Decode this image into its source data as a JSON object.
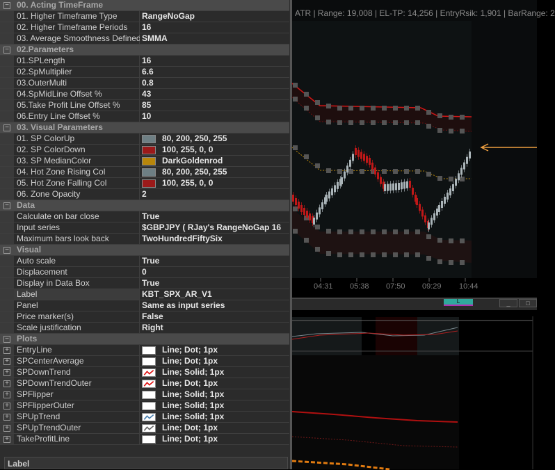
{
  "grid": [
    {
      "cat": "00. Acting TimeFrame"
    },
    {
      "label": "01. Higher Timeframe Type",
      "value": "RangeNoGap"
    },
    {
      "label": "02. Higher Timeframe Periods",
      "value": "16"
    },
    {
      "label": "03. Average Smoothness Defined",
      "value": "SMMA"
    },
    {
      "cat": "02.Parameters"
    },
    {
      "label": "01.SPLength",
      "value": "16"
    },
    {
      "label": "02.SpMultiplier",
      "value": "6.6"
    },
    {
      "label": "03.OuterMulti",
      "value": "0.8"
    },
    {
      "label": "04.SpMidLine Offset %",
      "value": "43"
    },
    {
      "label": "05.Take Profit Line Offset %",
      "value": "85"
    },
    {
      "label": "06.Entry Line  Offset %",
      "value": "10"
    },
    {
      "cat": "03. Visual Parameters"
    },
    {
      "label": "01. SP ColorUp",
      "value": "80, 200, 250, 255",
      "swatch": "#6e7f84"
    },
    {
      "label": "02. SP ColorDown",
      "value": "100, 255, 0, 0",
      "swatch": "#9b1a1a"
    },
    {
      "label": "03. SP MedianColor",
      "value": "DarkGoldenrod",
      "swatch": "#b8860b"
    },
    {
      "label": "04. Hot Zone Rising Col",
      "value": "80, 200, 250, 255",
      "swatch": "#6e7f84"
    },
    {
      "label": "05. Hot Zone Falling  Col",
      "value": "100, 255, 0, 0",
      "swatch": "#9b1a1a"
    },
    {
      "label": "06. Zone Opacity",
      "value": "2"
    },
    {
      "cat": "Data"
    },
    {
      "label": "Calculate on bar close",
      "value": "True"
    },
    {
      "label": "Input series",
      "value": "$GBPJPY ( RJay's RangeNoGap  16"
    },
    {
      "label": "Maximum bars look back",
      "value": "TwoHundredFiftySix"
    },
    {
      "cat": "Visual"
    },
    {
      "label": "Auto scale",
      "value": "True"
    },
    {
      "label": "Displacement",
      "value": "0"
    },
    {
      "label": "Display in Data Box",
      "value": "True"
    },
    {
      "label": "Label",
      "value": "KBT_SPX_AR_V1",
      "selected": true
    },
    {
      "label": "Panel",
      "value": "Same as input series"
    },
    {
      "label": "Price marker(s)",
      "value": "False"
    },
    {
      "label": "Scale justification",
      "value": "Right"
    },
    {
      "cat": "Plots"
    },
    {
      "label": "EntryLine",
      "value": "Line; Dot; 1px",
      "plot": "white",
      "expand": true
    },
    {
      "label": "SPCenterAverage",
      "value": "Line; Dot; 1px",
      "plot": "white",
      "expand": true
    },
    {
      "label": "SPDownTrend",
      "value": "Line; Solid; 1px",
      "plot": "red-line",
      "expand": true
    },
    {
      "label": "SPDownTrendOuter",
      "value": "Line; Dot; 1px",
      "plot": "red-line",
      "expand": true
    },
    {
      "label": "SPFlipper",
      "value": "Line; Solid; 1px",
      "plot": "white",
      "expand": true
    },
    {
      "label": "SPFlipperOuter",
      "value": "Line; Solid; 1px",
      "plot": "white",
      "expand": true
    },
    {
      "label": "SPUpTrend",
      "value": "Line; Solid; 1px",
      "plot": "blue-line",
      "expand": true
    },
    {
      "label": "SPUpTrendOuter",
      "value": "Line; Dot; 1px",
      "plot": "gray-line",
      "expand": true
    },
    {
      "label": "TakeProfitLine",
      "value": "Line; Dot; 1px",
      "plot": "white",
      "expand": true
    }
  ],
  "description_header": "Label",
  "chart": {
    "info": "ATR | Range: 19,008  | EL-TP: 14,256  | EntryRsik: 1,901  | BarRange: 2",
    "time_labels": [
      "04:31",
      "05:38",
      "07:50",
      "09:29",
      "10:44"
    ],
    "tab_label": "L",
    "minimize": "_",
    "restore": "□",
    "colors": {
      "down": "#c01818",
      "up": "#aab4b8",
      "median": "#b8860b",
      "arrow": "#f0a040"
    }
  }
}
